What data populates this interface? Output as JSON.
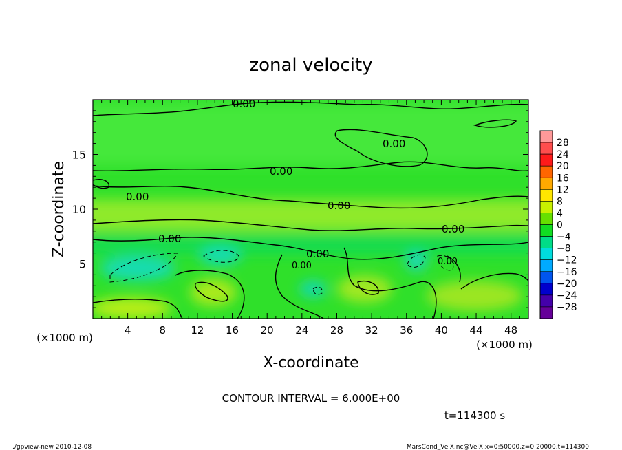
{
  "chart_data": {
    "type": "heatmap",
    "title": "zonal velocity",
    "xlabel": "X-coordinate",
    "ylabel": "Z-coordinate",
    "x_units": "(×1000 m)",
    "z_units": "(×1000 m)",
    "xlim": [
      0,
      50
    ],
    "ylim": [
      0,
      20
    ],
    "x_ticks": [
      "4",
      "8",
      "12",
      "16",
      "20",
      "24",
      "28",
      "32",
      "36",
      "40",
      "44",
      "48"
    ],
    "x_tick_values": [
      4,
      8,
      12,
      16,
      20,
      24,
      28,
      32,
      36,
      40,
      44,
      48
    ],
    "y_ticks": [
      "5",
      "10",
      "15"
    ],
    "y_tick_values": [
      5,
      10,
      15
    ],
    "colorbar": {
      "labels": [
        "28",
        "24",
        "20",
        "16",
        "12",
        "8",
        "4",
        "0",
        "−4",
        "−8",
        "−12",
        "−16",
        "−20",
        "−24",
        "−28"
      ],
      "values": [
        28,
        24,
        20,
        16,
        12,
        8,
        4,
        0,
        -4,
        -8,
        -12,
        -16,
        -20,
        -24,
        -28
      ],
      "colors": [
        "#ff9999",
        "#ff4d4d",
        "#ff1a1a",
        "#ff6600",
        "#ffaa00",
        "#ffe600",
        "#c8f000",
        "#66e000",
        "#11dd22",
        "#00dd88",
        "#00dddd",
        "#00aaff",
        "#0055ee",
        "#0000cc",
        "#4400aa",
        "#660099"
      ]
    },
    "contour_labels": [
      "0.00",
      "0.00",
      "0.00",
      "0.00",
      "0.00",
      "0.00",
      "0.00",
      "0.00",
      "0.00",
      "0.00"
    ],
    "annotations": {
      "contour_interval": "CONTOUR INTERVAL = 6.000E+00",
      "time": "t=114300 s",
      "footer_left": "./gpview-new  2010-12-08",
      "footer_right": "MarsCond_VelX.nc@VelX,x=0:50000,z=0:20000,t=114300"
    }
  }
}
